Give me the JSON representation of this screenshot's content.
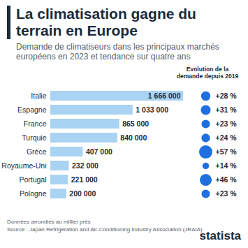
{
  "chart_data": {
    "type": "bar",
    "orientation": "horizontal",
    "title": "La climatisation gagne du terrain en Europe",
    "subtitle": "Demande de climatiseurs dans les principaux marchés européens en 2023 et tendance sur quatre ans",
    "categories": [
      "Italie",
      "Espagne",
      "France",
      "Turquie",
      "Grèce",
      "Royaume-Uni",
      "Portugal",
      "Pologne"
    ],
    "values": [
      1666000,
      1033000,
      865000,
      840000,
      407000,
      232000,
      221000,
      200000
    ],
    "value_labels": [
      "1 666 000",
      "1 033 000",
      "865 000",
      "840 000",
      "407 000",
      "232 000",
      "221 000",
      "200 000"
    ],
    "data_labels": true,
    "color": "#a9d3f3",
    "xlim": [
      0,
      1666000
    ],
    "tick_labels": "y",
    "growth": {
      "title": "Évolution de la demande depuis 2019",
      "values": [
        28,
        31,
        23,
        24,
        57,
        14,
        46,
        23
      ],
      "value_labels": [
        "+28 %",
        "+31 %",
        "+23 %",
        "+24 %",
        "+57 %",
        "+14 %",
        "+46 %",
        "+23 %"
      ],
      "color": "#1f6fe0"
    },
    "notes": [
      "Données arrondies au millier près",
      "Source : Japan Refrigeration and Air-Conditioning Industry Association (JRAIA)"
    ],
    "brand": "statista"
  }
}
